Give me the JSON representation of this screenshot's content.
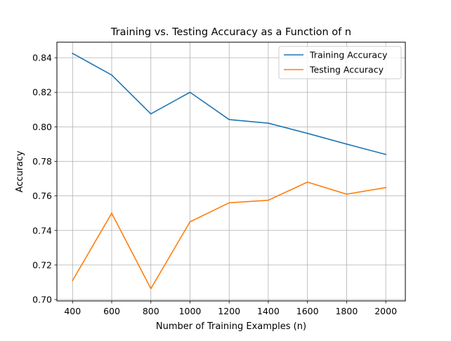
{
  "chart_data": {
    "type": "line",
    "title": "Training vs. Testing Accuracy as a Function of n",
    "xlabel": "Number of Training Examples (n)",
    "ylabel": "Accuracy",
    "x": [
      400,
      600,
      800,
      1000,
      1200,
      1400,
      1600,
      1800,
      2000
    ],
    "xlim": [
      320,
      2100
    ],
    "ylim": [
      0.6992,
      0.849
    ],
    "xticks": [
      400,
      600,
      800,
      1000,
      1200,
      1400,
      1600,
      1800,
      2000
    ],
    "yticks": [
      0.7,
      0.72,
      0.74,
      0.76,
      0.78,
      0.8,
      0.82,
      0.84
    ],
    "ytick_labels": [
      "0.70",
      "0.72",
      "0.74",
      "0.76",
      "0.78",
      "0.80",
      "0.82",
      "0.84"
    ],
    "grid": true,
    "legend_position": "top-right",
    "series": [
      {
        "name": "Training Accuracy",
        "color": "#1f77b4",
        "values": [
          0.8425,
          0.83,
          0.8075,
          0.82,
          0.8042,
          0.8021,
          0.7962,
          0.79,
          0.784
        ]
      },
      {
        "name": "Testing Accuracy",
        "color": "#ff7f0e",
        "values": [
          0.711,
          0.75,
          0.7063,
          0.745,
          0.756,
          0.7575,
          0.768,
          0.761,
          0.7648
        ]
      }
    ]
  }
}
